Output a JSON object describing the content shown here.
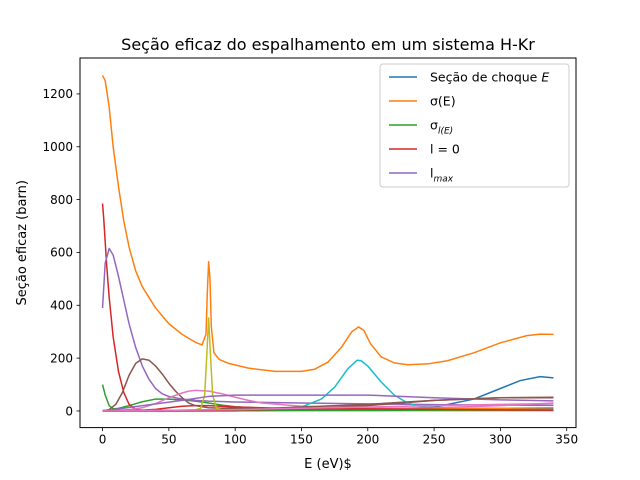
{
  "chart_data": {
    "type": "line",
    "title": "Seção eficaz do espalhamento em um sistema H-Kr",
    "xlabel": "E (eV)$",
    "ylabel": "Seção eficaz (barn)",
    "xlim": [
      -17,
      357
    ],
    "ylim": [
      -63,
      1336
    ],
    "xticks": [
      0,
      50,
      100,
      150,
      200,
      250,
      300,
      350
    ],
    "yticks": [
      0,
      200,
      400,
      600,
      800,
      1000,
      1200
    ],
    "grid": false,
    "legend": {
      "placement": "top-right",
      "entries": [
        {
          "label": "Seção de choque ",
          "math": "E",
          "color": "#1f77b4"
        },
        {
          "label": "σ(E)",
          "math": "",
          "color": "#ff7f0e"
        },
        {
          "label": "σ",
          "math": "l(E)",
          "color": "#2ca02c"
        },
        {
          "label": "l = 0",
          "math": "",
          "color": "#d62728"
        },
        {
          "label": "l",
          "math": "max",
          "color": "#9467bd"
        }
      ]
    },
    "series": [
      {
        "color": "#1f77b4",
        "x": [
          0,
          50,
          100,
          150,
          200,
          250,
          280,
          300,
          315,
          330,
          340
        ],
        "y": [
          0,
          0,
          1,
          2,
          4,
          14,
          45,
          85,
          115,
          130,
          125
        ]
      },
      {
        "color": "#ff7f0e",
        "x": [
          0,
          2,
          5,
          8,
          12,
          16,
          20,
          25,
          30,
          40,
          50,
          60,
          70,
          75,
          78,
          79,
          80,
          81,
          82,
          84,
          88,
          95,
          110,
          130,
          150,
          160,
          170,
          180,
          188,
          193,
          197,
          202,
          210,
          220,
          230,
          245,
          260,
          280,
          300,
          320,
          330,
          340
        ],
        "y": [
          1270,
          1250,
          1150,
          1000,
          850,
          720,
          620,
          530,
          470,
          390,
          330,
          290,
          260,
          250,
          290,
          450,
          565,
          500,
          320,
          220,
          195,
          180,
          162,
          150,
          150,
          158,
          185,
          240,
          300,
          318,
          305,
          255,
          205,
          182,
          175,
          178,
          190,
          220,
          258,
          285,
          291,
          290
        ]
      },
      {
        "color": "#2ca02c",
        "x": [
          0,
          2,
          5,
          8,
          12,
          20,
          30,
          40,
          50,
          60,
          70,
          80,
          90,
          100,
          120,
          150,
          200,
          250,
          300,
          340
        ],
        "y": [
          100,
          60,
          20,
          8,
          10,
          20,
          35,
          45,
          45,
          42,
          37,
          30,
          22,
          16,
          10,
          6,
          4,
          3,
          3,
          3
        ]
      },
      {
        "color": "#d62728",
        "x": [
          0,
          1,
          3,
          5,
          8,
          12,
          16,
          20,
          25,
          30,
          40,
          50,
          60,
          70,
          80,
          100,
          150,
          200,
          250,
          300,
          340
        ],
        "y": [
          785,
          720,
          560,
          430,
          280,
          150,
          70,
          25,
          5,
          3,
          6,
          12,
          18,
          20,
          20,
          15,
          8,
          5,
          3,
          2,
          2
        ]
      },
      {
        "color": "#9467bd",
        "x": [
          0,
          2,
          5,
          8,
          12,
          16,
          20,
          25,
          30,
          35,
          40,
          45,
          50,
          60,
          70,
          80,
          100,
          150,
          200,
          250,
          300,
          340
        ],
        "y": [
          390,
          560,
          615,
          590,
          510,
          420,
          330,
          240,
          170,
          120,
          85,
          65,
          55,
          45,
          40,
          37,
          34,
          30,
          27,
          24,
          22,
          21
        ]
      },
      {
        "color": "#8c564b",
        "x": [
          0,
          5,
          10,
          15,
          20,
          25,
          30,
          35,
          40,
          45,
          50,
          55,
          60,
          65,
          70,
          80,
          90,
          100,
          150,
          200,
          250,
          300,
          340
        ],
        "y": [
          0,
          5,
          25,
          70,
          135,
          180,
          197,
          192,
          170,
          140,
          105,
          75,
          50,
          30,
          20,
          12,
          10,
          10,
          10,
          20,
          40,
          50,
          50
        ]
      },
      {
        "color": "#e377c2",
        "x": [
          0,
          20,
          30,
          40,
          50,
          60,
          65,
          70,
          80,
          90,
          100,
          110,
          120,
          150,
          200,
          250,
          300,
          340
        ],
        "y": [
          0,
          5,
          12,
          28,
          50,
          68,
          75,
          78,
          75,
          65,
          52,
          40,
          30,
          18,
          10,
          12,
          20,
          30
        ]
      },
      {
        "color": "#7f7f7f",
        "x": [
          0,
          340
        ],
        "y": [
          2,
          2
        ]
      },
      {
        "color": "#bcbd22",
        "x": [
          0,
          60,
          70,
          74,
          77,
          78.5,
          80,
          81.5,
          83,
          86,
          90,
          100,
          150,
          200,
          250,
          300,
          340
        ],
        "y": [
          0,
          2,
          4,
          10,
          60,
          200,
          352,
          200,
          60,
          10,
          4,
          2,
          1,
          1,
          1,
          1,
          1
        ]
      },
      {
        "color": "#17becf",
        "x": [
          0,
          100,
          130,
          150,
          165,
          175,
          185,
          192,
          195,
          200,
          210,
          220,
          230,
          240,
          250,
          270,
          300,
          340
        ],
        "y": [
          0,
          0,
          4,
          15,
          45,
          90,
          160,
          192,
          190,
          170,
          110,
          60,
          30,
          16,
          10,
          6,
          4,
          4
        ]
      },
      {
        "color": "#1f77b4",
        "x": [
          0,
          50,
          100,
          150,
          200,
          250,
          300,
          340
        ],
        "y": [
          0,
          1,
          2,
          3,
          5,
          8,
          10,
          10
        ]
      },
      {
        "color": "#ff7f0e",
        "x": [
          0,
          50,
          100,
          150,
          200,
          250,
          300,
          340
        ],
        "y": [
          0,
          1,
          2,
          4,
          6,
          8,
          10,
          12
        ]
      },
      {
        "color": "#2ca02c",
        "x": [
          0,
          50,
          100,
          150,
          200,
          250,
          300,
          340
        ],
        "y": [
          0,
          1,
          1,
          2,
          2,
          3,
          3,
          3
        ]
      },
      {
        "color": "#d62728",
        "x": [
          0,
          80,
          120,
          150,
          200,
          250,
          300,
          340
        ],
        "y": [
          0,
          2,
          5,
          8,
          8,
          6,
          4,
          3
        ]
      },
      {
        "color": "#9467bd",
        "x": [
          0,
          60,
          80,
          100,
          150,
          200,
          250,
          300,
          340
        ],
        "y": [
          0,
          40,
          55,
          60,
          60,
          60,
          50,
          42,
          38
        ]
      },
      {
        "color": "#8c564b",
        "x": [
          0,
          100,
          150,
          200,
          250,
          300,
          340
        ],
        "y": [
          0,
          5,
          15,
          25,
          40,
          50,
          52
        ]
      },
      {
        "color": "#e377c2",
        "x": [
          0,
          100,
          150,
          200,
          250,
          300,
          340
        ],
        "y": [
          0,
          5,
          10,
          15,
          20,
          25,
          28
        ]
      }
    ]
  }
}
